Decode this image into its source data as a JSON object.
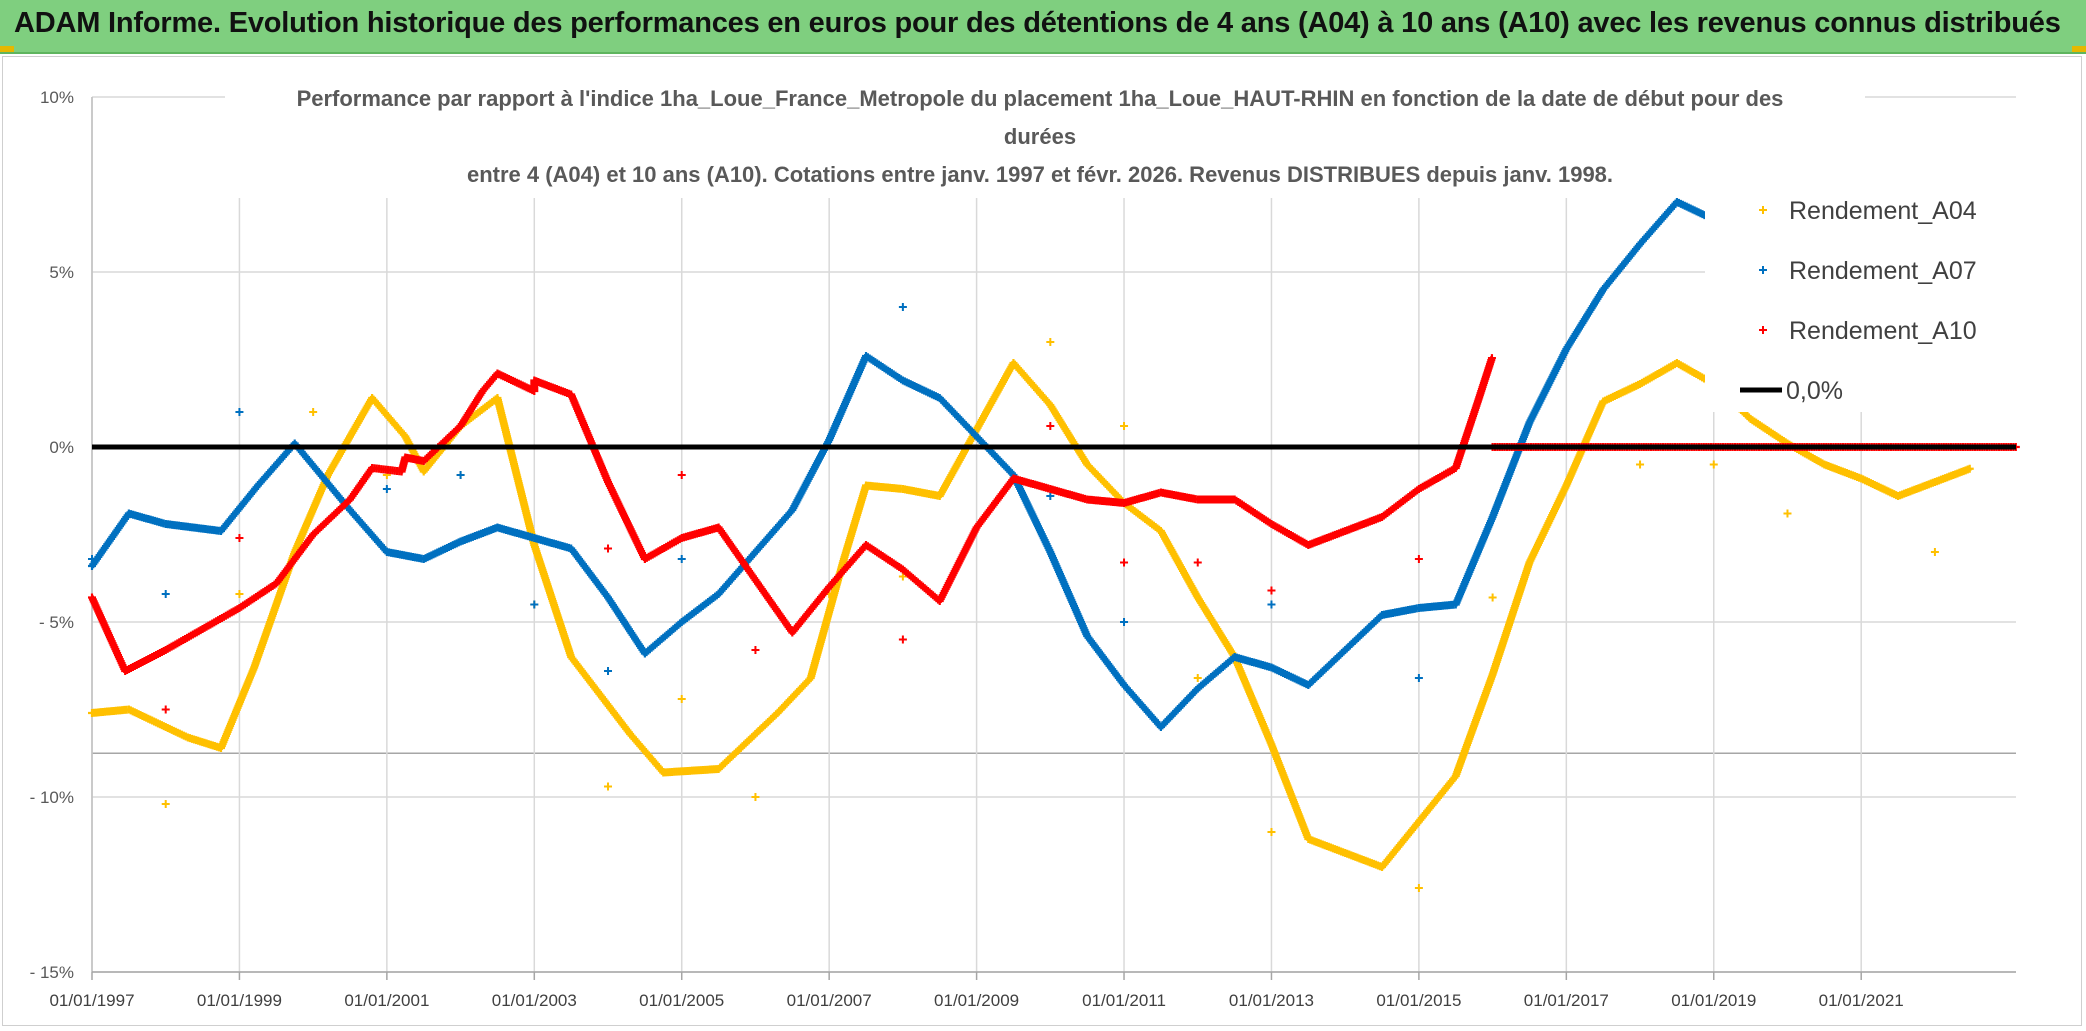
{
  "header": {
    "title": "ADAM Informe. Evolution historique des performances en euros pour des détentions de 4 ans (A04) à 10 ans (A10) avec les revenus connus distribués"
  },
  "chart_data": {
    "type": "scatter",
    "title_lines": [
      "Performance par rapport à l'indice 1ha_Loue_France_Metropole  du placement 1ha_Loue_HAUT-RHIN en fonction de la date de début pour des",
      "durées",
      "entre 4 (A04) et 10 ans (A10). Cotations entre janv. 1997 et févr. 2026. Revenus DISTRIBUES depuis janv. 1998."
    ],
    "xlabel": "",
    "ylabel": "",
    "x_ticks": [
      "01/01/1997",
      "01/01/1999",
      "01/01/2001",
      "01/01/2003",
      "01/01/2005",
      "01/01/2007",
      "01/01/2009",
      "01/01/2011",
      "01/01/2013",
      "01/01/2015",
      "01/01/2017",
      "01/01/2019",
      "01/01/2021"
    ],
    "y_ticks": [
      {
        "value": 10,
        "label": "10%"
      },
      {
        "value": 5,
        "label": "5%"
      },
      {
        "value": 0,
        "label": "0%"
      },
      {
        "value": -5,
        "label": "- 5%"
      },
      {
        "value": -10,
        "label": "- 10%"
      },
      {
        "value": -15,
        "label": "- 15%"
      }
    ],
    "ylim": [
      -15,
      10
    ],
    "xlim": [
      1997.0,
      2023.1
    ],
    "legend": [
      "Rendement_A04",
      "Rendement_A07",
      "Rendement_A10",
      "0,0%"
    ],
    "legend_position": "right",
    "colors": {
      "A04": "#ffc000",
      "A07": "#0070c0",
      "A10": "#ff0000",
      "zero": "#000000"
    },
    "series": [
      {
        "name": "Rendement_A04",
        "key": "A04",
        "points": [
          [
            1997.0,
            -7.6
          ],
          [
            1997.5,
            -7.5
          ],
          [
            1998.0,
            -8.0
          ],
          [
            1998.3,
            -8.3
          ],
          [
            1998.75,
            -8.6
          ],
          [
            1999.2,
            -6.3
          ],
          [
            1999.75,
            -3.0
          ],
          [
            2000.2,
            -0.8
          ],
          [
            2000.8,
            1.4
          ],
          [
            2001.25,
            0.3
          ],
          [
            2001.5,
            -0.7
          ],
          [
            2002.0,
            0.6
          ],
          [
            2002.5,
            1.4
          ],
          [
            2003.0,
            -2.8
          ],
          [
            2003.5,
            -6.0
          ],
          [
            2004.3,
            -8.2
          ],
          [
            2004.75,
            -9.3
          ],
          [
            2005.5,
            -9.2
          ],
          [
            2006.3,
            -7.6
          ],
          [
            2006.75,
            -6.6
          ],
          [
            2007.2,
            -3.2
          ],
          [
            2007.5,
            -1.1
          ],
          [
            2008.0,
            -1.2
          ],
          [
            2008.5,
            -1.4
          ],
          [
            2009.0,
            0.5
          ],
          [
            2009.5,
            2.4
          ],
          [
            2010.0,
            1.2
          ],
          [
            2010.5,
            -0.5
          ],
          [
            2011.0,
            -1.6
          ],
          [
            2011.5,
            -2.4
          ],
          [
            2012.0,
            -4.3
          ],
          [
            2012.5,
            -6.0
          ],
          [
            2013.0,
            -8.5
          ],
          [
            2013.5,
            -11.2
          ],
          [
            2014.0,
            -11.6
          ],
          [
            2014.5,
            -12.0
          ],
          [
            2015.0,
            -10.7
          ],
          [
            2015.5,
            -9.4
          ],
          [
            2016.0,
            -6.5
          ],
          [
            2016.5,
            -3.3
          ],
          [
            2017.0,
            -1.1
          ],
          [
            2017.5,
            1.3
          ],
          [
            2018.0,
            1.8
          ],
          [
            2018.5,
            2.4
          ],
          [
            2019.0,
            1.8
          ],
          [
            2019.5,
            0.8
          ],
          [
            2020.0,
            0.1
          ],
          [
            2020.5,
            -0.5
          ],
          [
            2021.0,
            -0.9
          ],
          [
            2021.5,
            -1.4
          ],
          [
            2022.0,
            -1.0
          ],
          [
            2022.5,
            -0.6
          ]
        ],
        "outliers": [
          [
            1998.0,
            -10.2
          ],
          [
            1999.0,
            -4.2
          ],
          [
            2000.0,
            1.0
          ],
          [
            2001.0,
            -0.8
          ],
          [
            2002.0,
            -0.8
          ],
          [
            2003.0,
            -4.5
          ],
          [
            2004.0,
            -9.7
          ],
          [
            2005.0,
            -7.2
          ],
          [
            2006.0,
            -10.0
          ],
          [
            2007.0,
            -4.2
          ],
          [
            2008.0,
            -3.7
          ],
          [
            2009.0,
            0.3
          ],
          [
            2010.0,
            3.0
          ],
          [
            2011.0,
            0.6
          ],
          [
            2012.0,
            -6.6
          ],
          [
            2013.0,
            -11.0
          ],
          [
            2015.0,
            -12.6
          ],
          [
            2016.0,
            -4.3
          ],
          [
            2018.0,
            -0.5
          ],
          [
            2019.0,
            -0.5
          ],
          [
            2020.0,
            -1.9
          ],
          [
            2022.0,
            -3.0
          ]
        ]
      },
      {
        "name": "Rendement_A07",
        "key": "A07",
        "points": [
          [
            1997.0,
            -3.4
          ],
          [
            1997.5,
            -1.9
          ],
          [
            1998.0,
            -2.2
          ],
          [
            1998.75,
            -2.4
          ],
          [
            1999.25,
            -1.1
          ],
          [
            1999.75,
            0.1
          ],
          [
            2000.5,
            -1.8
          ],
          [
            2001.0,
            -3.0
          ],
          [
            2001.5,
            -3.2
          ],
          [
            2002.0,
            -2.7
          ],
          [
            2002.5,
            -2.3
          ],
          [
            2003.0,
            -2.6
          ],
          [
            2003.5,
            -2.9
          ],
          [
            2004.0,
            -4.3
          ],
          [
            2004.5,
            -5.9
          ],
          [
            2005.0,
            -5.0
          ],
          [
            2005.5,
            -4.2
          ],
          [
            2006.0,
            -3.0
          ],
          [
            2006.5,
            -1.8
          ],
          [
            2007.0,
            0.2
          ],
          [
            2007.5,
            2.6
          ],
          [
            2008.0,
            1.9
          ],
          [
            2008.5,
            1.4
          ],
          [
            2009.0,
            0.3
          ],
          [
            2009.5,
            -0.8
          ],
          [
            2010.0,
            -3.0
          ],
          [
            2010.5,
            -5.4
          ],
          [
            2011.0,
            -6.8
          ],
          [
            2011.5,
            -8.0
          ],
          [
            2012.0,
            -6.9
          ],
          [
            2012.5,
            -6.0
          ],
          [
            2013.0,
            -6.3
          ],
          [
            2013.5,
            -6.8
          ],
          [
            2014.0,
            -5.8
          ],
          [
            2014.5,
            -4.8
          ],
          [
            2015.0,
            -4.6
          ],
          [
            2015.5,
            -4.5
          ],
          [
            2016.0,
            -2.0
          ],
          [
            2016.5,
            0.7
          ],
          [
            2017.0,
            2.8
          ],
          [
            2017.5,
            4.5
          ],
          [
            2018.0,
            5.8
          ],
          [
            2018.5,
            7.0
          ],
          [
            2018.9,
            6.6
          ]
        ],
        "outliers": [
          [
            1997.0,
            -3.2
          ],
          [
            1998.0,
            -4.2
          ],
          [
            1999.0,
            1.0
          ],
          [
            2001.0,
            -1.2
          ],
          [
            2002.0,
            -0.8
          ],
          [
            2003.0,
            -4.5
          ],
          [
            2004.0,
            -6.4
          ],
          [
            2005.0,
            -3.2
          ],
          [
            2008.0,
            4.0
          ],
          [
            2010.0,
            -1.4
          ],
          [
            2011.0,
            -5.0
          ],
          [
            2013.0,
            -4.5
          ],
          [
            2015.0,
            -6.6
          ]
        ]
      },
      {
        "name": "Rendement_A10",
        "key": "A10",
        "points": [
          [
            1997.0,
            -4.3
          ],
          [
            1997.45,
            -6.4
          ],
          [
            1998.0,
            -5.8
          ],
          [
            1998.5,
            -5.2
          ],
          [
            1999.0,
            -4.6
          ],
          [
            1999.5,
            -3.9
          ],
          [
            2000.0,
            -2.5
          ],
          [
            2000.5,
            -1.5
          ],
          [
            2000.8,
            -0.6
          ],
          [
            2001.2,
            -0.7
          ],
          [
            2001.25,
            -0.3
          ],
          [
            2001.5,
            -0.4
          ],
          [
            2002.0,
            0.6
          ],
          [
            2002.3,
            1.6
          ],
          [
            2002.5,
            2.1
          ],
          [
            2003.0,
            1.6
          ],
          [
            2003.0,
            1.9
          ],
          [
            2003.5,
            1.5
          ],
          [
            2004.0,
            -1.0
          ],
          [
            2004.5,
            -3.2
          ],
          [
            2005.0,
            -2.6
          ],
          [
            2005.5,
            -2.3
          ],
          [
            2006.0,
            -3.8
          ],
          [
            2006.5,
            -5.3
          ],
          [
            2007.0,
            -4.0
          ],
          [
            2007.5,
            -2.8
          ],
          [
            2008.0,
            -3.5
          ],
          [
            2008.5,
            -4.4
          ],
          [
            2009.0,
            -2.3
          ],
          [
            2009.5,
            -0.9
          ],
          [
            2010.0,
            -1.2
          ],
          [
            2010.5,
            -1.5
          ],
          [
            2011.0,
            -1.6
          ],
          [
            2011.5,
            -1.3
          ],
          [
            2012.0,
            -1.5
          ],
          [
            2012.5,
            -1.5
          ],
          [
            2013.0,
            -2.2
          ],
          [
            2013.5,
            -2.8
          ],
          [
            2014.0,
            -2.4
          ],
          [
            2014.5,
            -2.0
          ],
          [
            2015.0,
            -1.2
          ],
          [
            2015.5,
            -0.6
          ],
          [
            2015.8,
            1.3
          ],
          [
            2016.0,
            2.6
          ]
        ],
        "flat_segment": {
          "from": 2016.0,
          "to": 2023.1,
          "value": 0.0
        },
        "outliers": [
          [
            1998.0,
            -7.5
          ],
          [
            1999.0,
            -2.6
          ],
          [
            2004.0,
            -2.9
          ],
          [
            2005.0,
            -0.8
          ],
          [
            2006.0,
            -5.8
          ],
          [
            2008.0,
            -5.5
          ],
          [
            2010.0,
            0.6
          ],
          [
            2011.0,
            -3.3
          ],
          [
            2012.0,
            -3.3
          ],
          [
            2013.0,
            -4.1
          ],
          [
            2015.0,
            -3.2
          ]
        ]
      },
      {
        "name": "0,0%",
        "key": "zero",
        "points": [
          [
            1997.0,
            0.0
          ],
          [
            2023.1,
            0.0
          ]
        ]
      }
    ]
  }
}
